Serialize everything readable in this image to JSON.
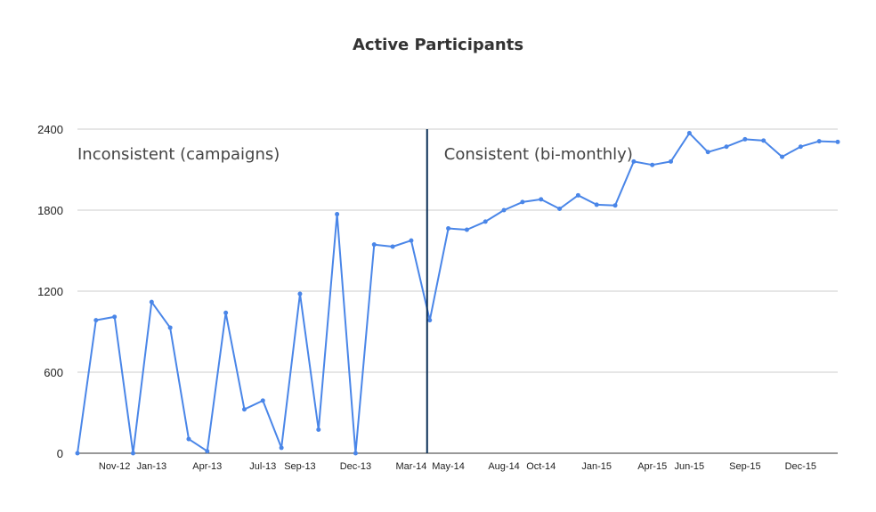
{
  "chart_data": {
    "type": "line",
    "title": "Active Participants",
    "xlabel": "",
    "ylabel": "",
    "ylim": [
      0,
      2400
    ],
    "y_ticks": [
      0,
      600,
      1200,
      1800,
      2400
    ],
    "grid": true,
    "legend": "none",
    "colors": {
      "series": "#4A86E8",
      "divider": "#0B2F57",
      "grid": "#CCCCCC",
      "axis": "#333333"
    },
    "x_tick_labels": [
      {
        "index": 2,
        "label": "Nov-12"
      },
      {
        "index": 4,
        "label": "Jan-13"
      },
      {
        "index": 7,
        "label": "Apr-13"
      },
      {
        "index": 10,
        "label": "Jul-13"
      },
      {
        "index": 12,
        "label": "Sep-13"
      },
      {
        "index": 15,
        "label": "Dec-13"
      },
      {
        "index": 18,
        "label": "Mar-14"
      },
      {
        "index": 20,
        "label": "May-14"
      },
      {
        "index": 23,
        "label": "Aug-14"
      },
      {
        "index": 25,
        "label": "Oct-14"
      },
      {
        "index": 28,
        "label": "Jan-15"
      },
      {
        "index": 31,
        "label": "Apr-15"
      },
      {
        "index": 33,
        "label": "Jun-15"
      },
      {
        "index": 36,
        "label": "Sep-15"
      },
      {
        "index": 39,
        "label": "Dec-15"
      }
    ],
    "divider_index": 19,
    "annotations": [
      {
        "text": "Inconsistent (campaigns)",
        "side": "left"
      },
      {
        "text": "Consistent (bi-monthly)",
        "side": "right"
      }
    ],
    "series": [
      {
        "values": [
          0,
          985,
          1010,
          0,
          1120,
          930,
          105,
          15,
          1040,
          325,
          390,
          40,
          1180,
          175,
          1770,
          0,
          1545,
          1530,
          1575,
          985,
          1665,
          1655,
          1715,
          1800,
          1860,
          1880,
          1810,
          1910,
          1840,
          1835,
          2160,
          2135,
          2160,
          2370,
          2230,
          2270,
          2325,
          2315,
          2195,
          2270,
          2310,
          2305
        ]
      }
    ]
  }
}
